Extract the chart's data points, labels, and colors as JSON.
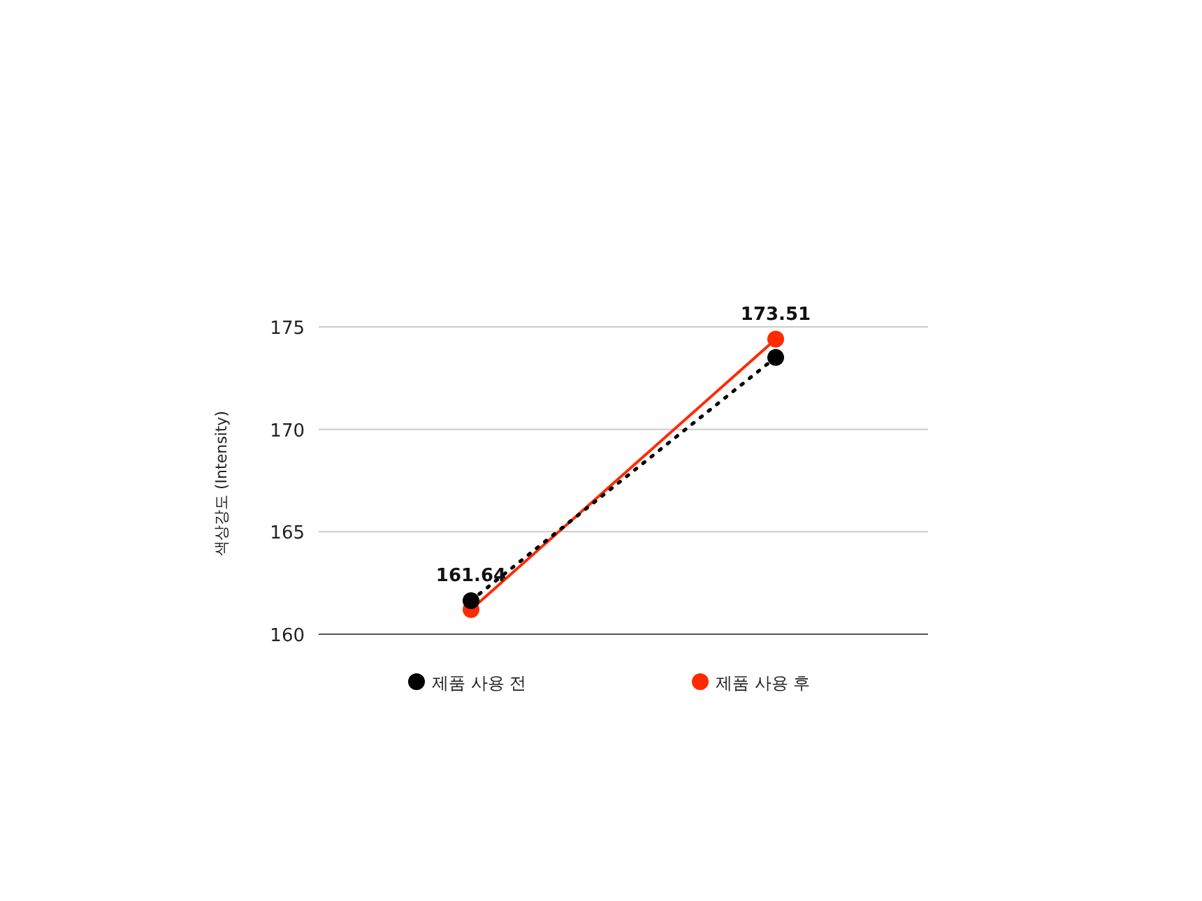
{
  "chart_data": {
    "type": "line",
    "ylabel": "색상강도 (Intensity)",
    "categories": [
      null,
      null
    ],
    "series": [
      {
        "name": "제품 사용 전",
        "color": "#000000",
        "line_style": "dotted",
        "values": [
          161.64,
          173.51
        ],
        "value_labels": [
          "161.64",
          "173.51"
        ]
      },
      {
        "name": "제품 사용 후",
        "color": "#ff2a00",
        "line_style": "solid",
        "values": [
          161.2,
          174.4
        ]
      }
    ],
    "ylim": [
      160,
      175
    ],
    "yticks": [
      160,
      165,
      170,
      175
    ],
    "grid": "y",
    "legend": "bottom",
    "marker": "circle"
  }
}
